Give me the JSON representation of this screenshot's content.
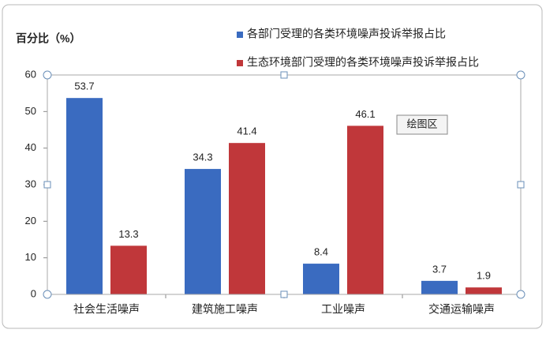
{
  "chart_data": {
    "type": "bar",
    "y_label": "百分比（%）",
    "categories": [
      "社会生活噪声",
      "建筑施工噪声",
      "工业噪声",
      "交通运输噪声"
    ],
    "series": [
      {
        "name": "各部门受理的各类环境噪声投诉举报占比",
        "color": "#3a6bc0",
        "values": [
          53.7,
          34.3,
          8.4,
          3.7
        ]
      },
      {
        "name": "生态环境部门受理的各类环境噪声投诉举报占比",
        "color": "#c0373a",
        "values": [
          13.3,
          41.4,
          46.1,
          1.9
        ]
      }
    ],
    "ylim": [
      0,
      60
    ],
    "yticks": [
      0,
      10,
      20,
      30,
      40,
      50,
      60
    ],
    "grid": false,
    "tooltip": "绘图区"
  }
}
